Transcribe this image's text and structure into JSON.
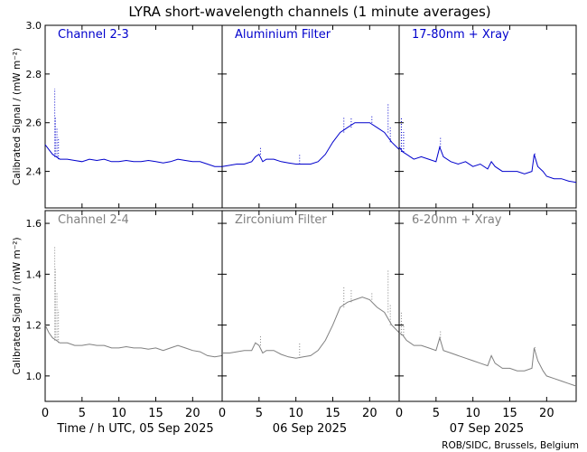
{
  "chart_data": {
    "type": "line",
    "title": "LYRA short-wavelength channels (1 minute averages)",
    "ylabel": "Calibrated Signal / (mW m⁻²)",
    "xlabel": "Time / h UTC, 05 Sep 2025",
    "day_labels": [
      "06 Sep 2025",
      "07 Sep 2025"
    ],
    "credit": "ROB/SIDC, Brussels, Belgium",
    "x_ticks": [
      "0",
      "5",
      "10",
      "15",
      "20"
    ],
    "rows": [
      {
        "ylim": [
          2.25,
          3.0
        ],
        "y_ticks": [
          2.4,
          2.6,
          2.8,
          3.0
        ],
        "y_tick_labels": [
          "2.4",
          "2.6",
          "2.8",
          "3.0"
        ],
        "color": "#0000cc",
        "panels": [
          {
            "name": "Channel 2-3",
            "series": [
              [
                0,
                2.51
              ],
              [
                0.5,
                2.49
              ],
              [
                1,
                2.47
              ],
              [
                1.5,
                2.46
              ],
              [
                2,
                2.45
              ],
              [
                3,
                2.45
              ],
              [
                4,
                2.445
              ],
              [
                5,
                2.44
              ],
              [
                6,
                2.45
              ],
              [
                7,
                2.445
              ],
              [
                8,
                2.45
              ],
              [
                9,
                2.44
              ],
              [
                10,
                2.44
              ],
              [
                11,
                2.445
              ],
              [
                12,
                2.44
              ],
              [
                13,
                2.44
              ],
              [
                14,
                2.445
              ],
              [
                15,
                2.44
              ],
              [
                16,
                2.435
              ],
              [
                17,
                2.44
              ],
              [
                18,
                2.45
              ],
              [
                19,
                2.445
              ],
              [
                20,
                2.44
              ],
              [
                21,
                2.44
              ],
              [
                22,
                2.43
              ],
              [
                23,
                2.42
              ],
              [
                24,
                2.42
              ]
            ],
            "spikes": [
              [
                1.3,
                2.74
              ],
              [
                1.4,
                2.62
              ],
              [
                1.6,
                2.58
              ],
              [
                1.8,
                2.54
              ]
            ]
          },
          {
            "name": "Aluminium Filter",
            "series": [
              [
                0,
                2.42
              ],
              [
                1,
                2.425
              ],
              [
                2,
                2.43
              ],
              [
                3,
                2.43
              ],
              [
                4,
                2.44
              ],
              [
                4.5,
                2.46
              ],
              [
                5,
                2.47
              ],
              [
                5.5,
                2.44
              ],
              [
                6,
                2.45
              ],
              [
                7,
                2.45
              ],
              [
                8,
                2.44
              ],
              [
                9,
                2.435
              ],
              [
                10,
                2.43
              ],
              [
                11,
                2.43
              ],
              [
                12,
                2.43
              ],
              [
                13,
                2.44
              ],
              [
                14,
                2.47
              ],
              [
                15,
                2.52
              ],
              [
                16,
                2.56
              ],
              [
                17,
                2.58
              ],
              [
                18,
                2.6
              ],
              [
                19,
                2.6
              ],
              [
                20,
                2.6
              ],
              [
                21,
                2.58
              ],
              [
                22,
                2.56
              ],
              [
                23,
                2.52
              ],
              [
                24,
                2.49
              ]
            ],
            "spikes": [
              [
                5.2,
                2.5
              ],
              [
                10.5,
                2.47
              ],
              [
                16.5,
                2.62
              ],
              [
                17.5,
                2.62
              ],
              [
                20.3,
                2.63
              ],
              [
                22.5,
                2.68
              ],
              [
                22.8,
                2.58
              ]
            ]
          },
          {
            "name": "17-80nm + Xray",
            "series": [
              [
                0,
                2.5
              ],
              [
                0.5,
                2.48
              ],
              [
                1,
                2.47
              ],
              [
                1.5,
                2.46
              ],
              [
                2,
                2.45
              ],
              [
                3,
                2.46
              ],
              [
                4,
                2.45
              ],
              [
                5,
                2.44
              ],
              [
                5.5,
                2.5
              ],
              [
                6,
                2.46
              ],
              [
                7,
                2.44
              ],
              [
                8,
                2.43
              ],
              [
                9,
                2.44
              ],
              [
                10,
                2.42
              ],
              [
                11,
                2.43
              ],
              [
                12,
                2.41
              ],
              [
                12.5,
                2.44
              ],
              [
                13,
                2.42
              ],
              [
                14,
                2.4
              ],
              [
                15,
                2.4
              ],
              [
                16,
                2.4
              ],
              [
                17,
                2.39
              ],
              [
                18,
                2.4
              ],
              [
                18.3,
                2.47
              ],
              [
                18.8,
                2.42
              ],
              [
                19.5,
                2.4
              ],
              [
                20,
                2.38
              ],
              [
                21,
                2.37
              ],
              [
                22,
                2.37
              ],
              [
                23,
                2.36
              ],
              [
                24,
                2.355
              ]
            ],
            "spikes": [
              [
                0.3,
                2.62
              ],
              [
                0.6,
                2.57
              ],
              [
                5.6,
                2.54
              ],
              [
                18.4,
                2.48
              ]
            ]
          }
        ]
      },
      {
        "ylim": [
          0.9,
          1.65
        ],
        "y_ticks": [
          1.0,
          1.2,
          1.4,
          1.6
        ],
        "y_tick_labels": [
          "1.0",
          "1.2",
          "1.4",
          "1.6"
        ],
        "color": "#808080",
        "panels": [
          {
            "name": "Channel 2-4",
            "series": [
              [
                0,
                1.2
              ],
              [
                0.5,
                1.17
              ],
              [
                1,
                1.15
              ],
              [
                1.5,
                1.14
              ],
              [
                2,
                1.13
              ],
              [
                3,
                1.13
              ],
              [
                4,
                1.12
              ],
              [
                5,
                1.12
              ],
              [
                6,
                1.125
              ],
              [
                7,
                1.12
              ],
              [
                8,
                1.12
              ],
              [
                9,
                1.11
              ],
              [
                10,
                1.11
              ],
              [
                11,
                1.115
              ],
              [
                12,
                1.11
              ],
              [
                13,
                1.11
              ],
              [
                14,
                1.105
              ],
              [
                15,
                1.11
              ],
              [
                16,
                1.1
              ],
              [
                17,
                1.11
              ],
              [
                18,
                1.12
              ],
              [
                19,
                1.11
              ],
              [
                20,
                1.1
              ],
              [
                21,
                1.095
              ],
              [
                22,
                1.08
              ],
              [
                23,
                1.075
              ],
              [
                24,
                1.08
              ]
            ],
            "spikes": [
              [
                1.3,
                1.51
              ],
              [
                1.4,
                1.42
              ],
              [
                1.6,
                1.33
              ],
              [
                1.8,
                1.26
              ]
            ]
          },
          {
            "name": "Zirconium Filter",
            "series": [
              [
                0,
                1.09
              ],
              [
                1,
                1.09
              ],
              [
                2,
                1.095
              ],
              [
                3,
                1.1
              ],
              [
                4,
                1.1
              ],
              [
                4.5,
                1.13
              ],
              [
                5,
                1.12
              ],
              [
                5.5,
                1.09
              ],
              [
                6,
                1.1
              ],
              [
                7,
                1.1
              ],
              [
                8,
                1.085
              ],
              [
                9,
                1.075
              ],
              [
                10,
                1.07
              ],
              [
                11,
                1.075
              ],
              [
                12,
                1.08
              ],
              [
                13,
                1.1
              ],
              [
                14,
                1.14
              ],
              [
                15,
                1.2
              ],
              [
                16,
                1.27
              ],
              [
                17,
                1.29
              ],
              [
                18,
                1.3
              ],
              [
                19,
                1.31
              ],
              [
                20,
                1.3
              ],
              [
                21,
                1.27
              ],
              [
                22,
                1.25
              ],
              [
                23,
                1.2
              ],
              [
                24,
                1.17
              ]
            ],
            "spikes": [
              [
                5.2,
                1.16
              ],
              [
                10.5,
                1.13
              ],
              [
                16.5,
                1.35
              ],
              [
                17.5,
                1.34
              ],
              [
                20.3,
                1.33
              ],
              [
                22.5,
                1.42
              ],
              [
                22.8,
                1.28
              ]
            ]
          },
          {
            "name": "6-20nm + Xray",
            "series": [
              [
                0,
                1.17
              ],
              [
                0.5,
                1.16
              ],
              [
                1,
                1.14
              ],
              [
                1.5,
                1.13
              ],
              [
                2,
                1.12
              ],
              [
                3,
                1.12
              ],
              [
                4,
                1.11
              ],
              [
                5,
                1.1
              ],
              [
                5.5,
                1.15
              ],
              [
                6,
                1.1
              ],
              [
                7,
                1.09
              ],
              [
                8,
                1.08
              ],
              [
                9,
                1.07
              ],
              [
                10,
                1.06
              ],
              [
                11,
                1.05
              ],
              [
                12,
                1.04
              ],
              [
                12.5,
                1.08
              ],
              [
                13,
                1.05
              ],
              [
                14,
                1.03
              ],
              [
                15,
                1.03
              ],
              [
                16,
                1.02
              ],
              [
                17,
                1.02
              ],
              [
                18,
                1.03
              ],
              [
                18.3,
                1.11
              ],
              [
                18.8,
                1.06
              ],
              [
                19.5,
                1.02
              ],
              [
                20,
                1.0
              ],
              [
                21,
                0.99
              ],
              [
                22,
                0.98
              ],
              [
                23,
                0.97
              ],
              [
                24,
                0.96
              ]
            ],
            "spikes": [
              [
                0.3,
                1.25
              ],
              [
                0.6,
                1.2
              ],
              [
                5.6,
                1.18
              ],
              [
                18.4,
                1.12
              ]
            ]
          }
        ]
      }
    ]
  }
}
